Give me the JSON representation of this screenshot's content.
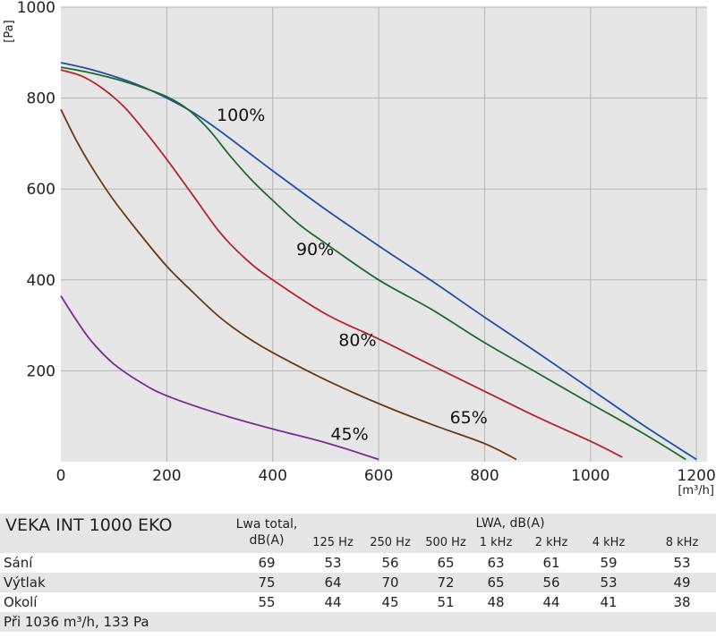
{
  "chart_data": {
    "type": "line",
    "xlabel": "[m³/h]",
    "ylabel": "[Pa]",
    "xlim": [
      0,
      1220
    ],
    "ylim": [
      0,
      1000
    ],
    "xticks": [
      0,
      200,
      400,
      600,
      800,
      1000,
      1200
    ],
    "yticks": [
      200,
      400,
      600,
      800,
      1000
    ],
    "grid": true,
    "plot_background": "#e6e6e6",
    "series": [
      {
        "name": "100%",
        "color": "#1f4fa8",
        "label_at": [
          340,
          750
        ],
        "points": [
          [
            0,
            878
          ],
          [
            50,
            865
          ],
          [
            100,
            848
          ],
          [
            150,
            827
          ],
          [
            200,
            800
          ],
          [
            250,
            768
          ],
          [
            300,
            728
          ],
          [
            400,
            640
          ],
          [
            500,
            555
          ],
          [
            600,
            475
          ],
          [
            700,
            398
          ],
          [
            800,
            318
          ],
          [
            900,
            240
          ],
          [
            1000,
            160
          ],
          [
            1100,
            80
          ],
          [
            1200,
            5
          ]
        ]
      },
      {
        "name": "90%",
        "color": "#1f6b2e",
        "label_at": [
          480,
          455
        ],
        "points": [
          [
            0,
            868
          ],
          [
            50,
            857
          ],
          [
            100,
            843
          ],
          [
            150,
            825
          ],
          [
            200,
            803
          ],
          [
            240,
            775
          ],
          [
            280,
            730
          ],
          [
            320,
            672
          ],
          [
            360,
            620
          ],
          [
            400,
            575
          ],
          [
            450,
            522
          ],
          [
            500,
            480
          ],
          [
            600,
            400
          ],
          [
            700,
            335
          ],
          [
            800,
            262
          ],
          [
            900,
            195
          ],
          [
            1000,
            128
          ],
          [
            1100,
            62
          ],
          [
            1180,
            5
          ]
        ]
      },
      {
        "name": "80%",
        "color": "#b3252a",
        "label_at": [
          560,
          255
        ],
        "points": [
          [
            0,
            862
          ],
          [
            40,
            848
          ],
          [
            80,
            820
          ],
          [
            120,
            780
          ],
          [
            160,
            725
          ],
          [
            200,
            665
          ],
          [
            250,
            585
          ],
          [
            300,
            505
          ],
          [
            350,
            445
          ],
          [
            400,
            400
          ],
          [
            500,
            325
          ],
          [
            600,
            270
          ],
          [
            700,
            212
          ],
          [
            800,
            155
          ],
          [
            900,
            98
          ],
          [
            1000,
            45
          ],
          [
            1060,
            10
          ]
        ]
      },
      {
        "name": "65%",
        "color": "#6b3a12",
        "label_at": [
          770,
          85
        ],
        "points": [
          [
            0,
            775
          ],
          [
            30,
            705
          ],
          [
            60,
            645
          ],
          [
            100,
            575
          ],
          [
            150,
            500
          ],
          [
            200,
            430
          ],
          [
            250,
            372
          ],
          [
            300,
            318
          ],
          [
            350,
            275
          ],
          [
            400,
            240
          ],
          [
            500,
            180
          ],
          [
            600,
            128
          ],
          [
            700,
            82
          ],
          [
            800,
            40
          ],
          [
            860,
            5
          ]
        ]
      },
      {
        "name": "45%",
        "color": "#7a2c94",
        "label_at": [
          545,
          48
        ],
        "points": [
          [
            0,
            365
          ],
          [
            30,
            310
          ],
          [
            60,
            262
          ],
          [
            100,
            215
          ],
          [
            150,
            175
          ],
          [
            200,
            145
          ],
          [
            300,
            105
          ],
          [
            400,
            72
          ],
          [
            500,
            42
          ],
          [
            600,
            5
          ]
        ]
      }
    ]
  },
  "table": {
    "unit_name": "VEKA INT 1000 EKO",
    "lwa_total_header_line1": "Lwa total,",
    "lwa_total_header_line2": "dB(A)",
    "lwa_header": "LWA, dB(A)",
    "bands": [
      "125  Hz",
      "250  Hz",
      "500  Hz",
      "1 kHz",
      "2 kHz",
      "4 kHz",
      "8 kHz"
    ],
    "rows": [
      {
        "label": "Sání",
        "total": "69",
        "values": [
          "53",
          "56",
          "65",
          "63",
          "61",
          "59",
          "53"
        ]
      },
      {
        "label": "Výtlak",
        "total": "75",
        "values": [
          "64",
          "70",
          "72",
          "65",
          "56",
          "53",
          "49"
        ]
      },
      {
        "label": "Okolí",
        "total": "55",
        "values": [
          "44",
          "45",
          "51",
          "48",
          "44",
          "41",
          "38"
        ]
      }
    ],
    "footnote": "Při 1036 m³/h, 133 Pa"
  }
}
